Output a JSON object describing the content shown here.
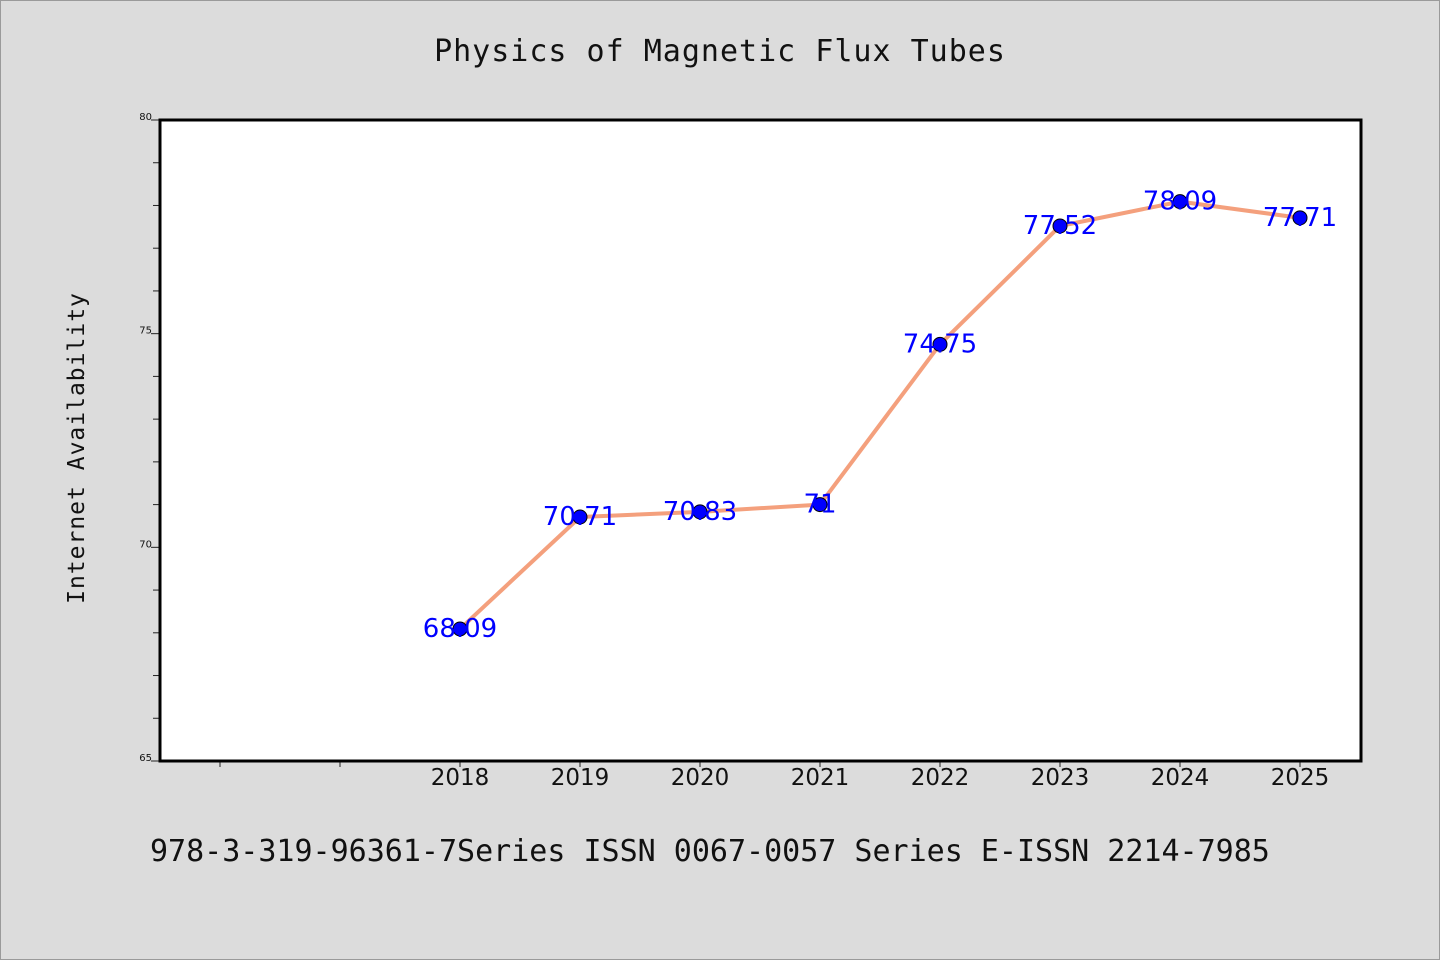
{
  "title": "Physics of Magnetic Flux Tubes",
  "footer": "978-3-319-96361-7Series ISSN 0067-0057 Series E-ISSN 2214-7985",
  "colors": {
    "background": "#dcdcdc",
    "plot_background": "#ffffff",
    "line": "#f4a07d",
    "marker": "#0000ff",
    "data_label": "#0000ff"
  },
  "chart_data": {
    "type": "line",
    "title": "Physics of Magnetic Flux Tubes",
    "xlabel": "",
    "ylabel": "Internet Availability",
    "categories": [
      "2018",
      "2019",
      "2020",
      "2021",
      "2022",
      "2023",
      "2024",
      "2025"
    ],
    "values": [
      68.09,
      70.71,
      70.83,
      71,
      74.75,
      77.52,
      78.09,
      77.71
    ],
    "data_labels": [
      "68.09",
      "70.71",
      "70.83",
      "71",
      "74.75",
      "77.52",
      "78.09",
      "77.71"
    ],
    "y_ticks": [
      "65",
      "70",
      "75",
      "80"
    ],
    "ylim": [
      65,
      80
    ],
    "x_slots_before_first": 2,
    "grid": false,
    "legend": "none"
  }
}
